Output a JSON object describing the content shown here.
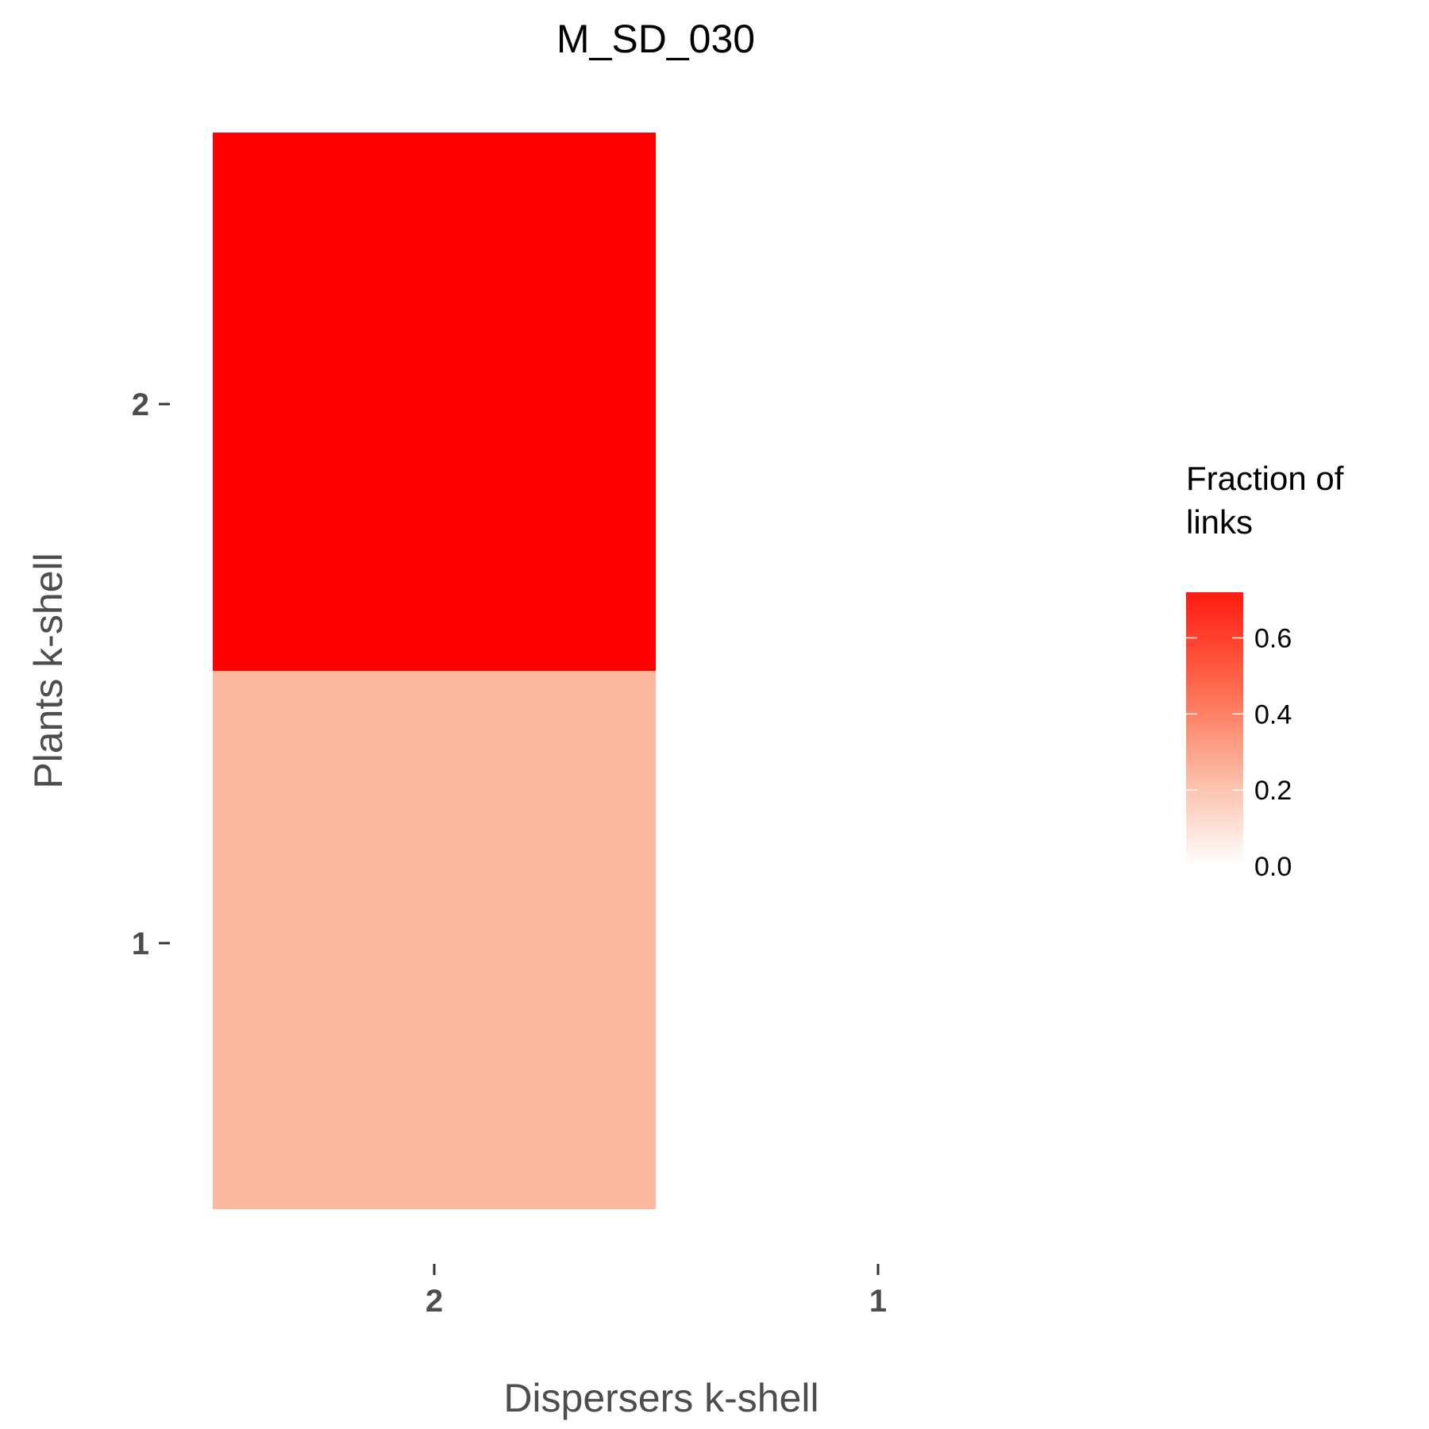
{
  "chart_data": {
    "type": "heatmap",
    "title": "M_SD_030",
    "xlabel": "Dispersers k-shell",
    "ylabel": "Plants k-shell",
    "x_categories": [
      "2",
      "1"
    ],
    "y_categories": [
      "1",
      "2"
    ],
    "cells": [
      {
        "x": "2",
        "y": "2",
        "value": 0.72
      },
      {
        "x": "2",
        "y": "1",
        "value": 0.28
      }
    ],
    "legend": {
      "title_lines": [
        "Fraction of",
        "links"
      ],
      "ticks": [
        0.0,
        0.2,
        0.4,
        0.6
      ],
      "tick_labels": [
        "0.0",
        "0.2",
        "0.4",
        "0.6"
      ],
      "range": [
        0,
        0.72
      ],
      "placement": "right"
    },
    "color_low": "#ffffff",
    "color_high": "#ff0000",
    "grid": false
  }
}
